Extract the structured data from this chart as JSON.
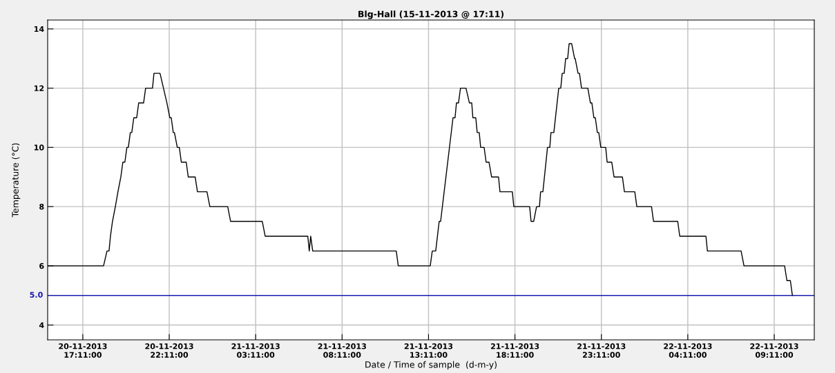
{
  "chart_data": {
    "type": "line",
    "title": "Blg-Hall (15-11-2013 @ 17:11)",
    "xlabel": "Date / Time of sample  (d-m-y)",
    "ylabel": "Temperature (°C)",
    "x": [
      "2013-11-20T15:09",
      "2013-11-20T18:23",
      "2013-11-20T18:35",
      "2013-11-20T18:42",
      "2013-11-20T18:47",
      "2013-11-20T18:54",
      "2013-11-20T19:04",
      "2013-11-20T19:13",
      "2013-11-20T19:23",
      "2013-11-20T19:30",
      "2013-11-20T19:37",
      "2013-11-20T19:44",
      "2013-11-20T19:49",
      "2013-11-20T19:56",
      "2013-11-20T20:01",
      "2013-11-20T20:08",
      "2013-11-20T20:18",
      "2013-11-20T20:25",
      "2013-11-20T20:42",
      "2013-11-20T20:49",
      "2013-11-20T21:13",
      "2013-11-20T21:18",
      "2013-11-20T21:39",
      "2013-11-20T21:51",
      "2013-11-20T22:03",
      "2013-11-20T22:13",
      "2013-11-20T22:18",
      "2013-11-20T22:25",
      "2013-11-20T22:29",
      "2013-11-20T22:39",
      "2013-11-20T22:46",
      "2013-11-20T22:53",
      "2013-11-20T23:10",
      "2013-11-20T23:17",
      "2013-11-20T23:41",
      "2013-11-20T23:49",
      "2013-11-21T00:22",
      "2013-11-21T00:32",
      "2013-11-21T01:34",
      "2013-11-21T01:44",
      "2013-11-21T03:34",
      "2013-11-21T03:44",
      "2013-11-21T06:12",
      "2013-11-21T06:17",
      "2013-11-21T06:22",
      "2013-11-21T06:29",
      "2013-11-21T11:19",
      "2013-11-21T11:26",
      "2013-11-21T13:17",
      "2013-11-21T13:24",
      "2013-11-21T13:36",
      "2013-11-21T13:48",
      "2013-11-21T13:53",
      "2013-11-21T14:36",
      "2013-11-21T14:43",
      "2013-11-21T14:48",
      "2013-11-21T14:55",
      "2013-11-21T15:02",
      "2013-11-21T15:21",
      "2013-11-21T15:33",
      "2013-11-21T15:41",
      "2013-11-21T15:45",
      "2013-11-21T15:55",
      "2013-11-21T16:00",
      "2013-11-21T16:07",
      "2013-11-21T16:12",
      "2013-11-21T16:24",
      "2013-11-21T16:31",
      "2013-11-21T16:41",
      "2013-11-21T16:50",
      "2013-11-21T17:14",
      "2013-11-21T17:19",
      "2013-11-21T18:02",
      "2013-11-21T18:07",
      "2013-11-21T19:02",
      "2013-11-21T19:07",
      "2013-11-21T19:16",
      "2013-11-21T19:26",
      "2013-11-21T19:36",
      "2013-11-21T19:40",
      "2013-11-21T19:48",
      "2013-11-21T20:04",
      "2013-11-21T20:12",
      "2013-11-21T20:16",
      "2013-11-21T20:26",
      "2013-11-21T20:43",
      "2013-11-21T20:50",
      "2013-11-21T20:55",
      "2013-11-21T21:02",
      "2013-11-21T21:07",
      "2013-11-21T21:14",
      "2013-11-21T21:19",
      "2013-11-21T21:28",
      "2013-11-21T21:38",
      "2013-11-21T21:40",
      "2013-11-21T21:50",
      "2013-11-21T21:55",
      "2013-11-21T22:02",
      "2013-11-21T22:24",
      "2013-11-21T22:33",
      "2013-11-21T22:38",
      "2013-11-21T22:45",
      "2013-11-21T22:50",
      "2013-11-21T22:57",
      "2013-11-21T23:02",
      "2013-11-21T23:09",
      "2013-11-21T23:26",
      "2013-11-21T23:31",
      "2013-11-21T23:47",
      "2013-11-21T23:55",
      "2013-11-22T00:24",
      "2013-11-22T00:31",
      "2013-11-22T01:07",
      "2013-11-22T01:14",
      "2013-11-22T02:05",
      "2013-11-22T02:12",
      "2013-11-22T03:36",
      "2013-11-22T03:43",
      "2013-11-22T05:14",
      "2013-11-22T05:19",
      "2013-11-22T07:16",
      "2013-11-22T07:26",
      "2013-11-22T09:47",
      "2013-11-22T09:55",
      "2013-11-22T10:07",
      "2013-11-22T10:14"
    ],
    "series": [
      {
        "color": "#000000",
        "values": [
          6,
          6,
          6.5,
          6.5,
          7,
          7.5,
          8,
          8.5,
          9,
          9.5,
          9.5,
          10,
          10,
          10.5,
          10.5,
          11,
          11,
          11.5,
          11.5,
          12,
          12,
          12.5,
          12.5,
          12,
          11.5,
          11,
          11,
          10.5,
          10.5,
          10,
          10,
          9.5,
          9.5,
          9,
          9,
          8.5,
          8.5,
          8,
          8,
          7.5,
          7.5,
          7,
          7,
          6.5,
          7,
          6.5,
          6.5,
          6,
          6,
          6.5,
          6.5,
          7.5,
          7.5,
          11,
          11,
          11.5,
          11.5,
          12,
          12,
          11.5,
          11.5,
          11,
          11,
          10.5,
          10.5,
          10,
          10,
          9.5,
          9.5,
          9,
          9,
          8.5,
          8.5,
          8,
          8,
          7.5,
          7.5,
          8,
          8,
          8.5,
          8.5,
          10,
          10,
          10.5,
          10.5,
          12,
          12,
          12.5,
          12.5,
          13,
          13,
          13.5,
          13.5,
          13,
          13,
          12.5,
          12.5,
          12,
          12,
          11.5,
          11.5,
          11,
          11,
          10.5,
          10.5,
          10,
          10,
          9.5,
          9.5,
          9,
          9,
          8.5,
          8.5,
          8,
          8,
          7.5,
          7.5,
          7,
          7,
          6.5,
          6.5,
          6,
          6,
          5.5,
          5.5,
          5
        ]
      }
    ],
    "xlim": [
      "2013-11-20T15:09",
      "2013-11-22T11:30"
    ],
    "xticks": [
      {
        "value": "2013-11-20T17:11",
        "label": "20-11-2013\n17:11:00"
      },
      {
        "value": "2013-11-20T22:11",
        "label": "20-11-2013\n22:11:00"
      },
      {
        "value": "2013-11-21T03:11",
        "label": "21-11-2013\n03:11:00"
      },
      {
        "value": "2013-11-21T08:11",
        "label": "21-11-2013\n08:11:00"
      },
      {
        "value": "2013-11-21T13:11",
        "label": "21-11-2013\n13:11:00"
      },
      {
        "value": "2013-11-21T18:11",
        "label": "21-11-2013\n18:11:00"
      },
      {
        "value": "2013-11-21T23:11",
        "label": "21-11-2013\n23:11:00"
      },
      {
        "value": "2013-11-22T04:11",
        "label": "22-11-2013\n04:11:00"
      },
      {
        "value": "2013-11-22T09:11",
        "label": "22-11-2013\n09:11:00"
      }
    ],
    "ylim": [
      3.5,
      14.3
    ],
    "yticks": [
      4,
      6,
      8,
      10,
      12,
      14
    ],
    "ref_lines": [
      {
        "axis": "y",
        "value": 5,
        "label": "5.0",
        "color": "#1a1ab0"
      }
    ],
    "grid": true,
    "legend": false
  }
}
